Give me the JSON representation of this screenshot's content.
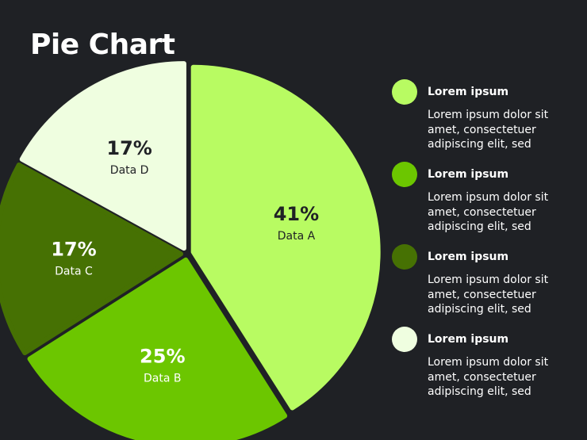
{
  "title": "Pie Chart",
  "chart_data": {
    "type": "pie",
    "title": "Pie Chart",
    "slices": [
      {
        "percent_label": "41%",
        "name": "Data A",
        "value": 41,
        "color": "#b8fb62",
        "text_color": "#1f2125"
      },
      {
        "percent_label": "25%",
        "name": "Data B",
        "value": 25,
        "color": "#6cc600",
        "text_color": "#ffffff"
      },
      {
        "percent_label": "17%",
        "name": "Data C",
        "value": 17,
        "color": "#467103",
        "text_color": "#ffffff"
      },
      {
        "percent_label": "17%",
        "name": "Data D",
        "value": 17,
        "color": "#effee0",
        "text_color": "#1f2125"
      }
    ]
  },
  "legend": [
    {
      "title": "Lorem ipsum",
      "text": "Lorem ipsum dolor sit amet, consectetuer adipiscing elit, sed",
      "color": "#b8fb62"
    },
    {
      "title": "Lorem ipsum",
      "text": "Lorem ipsum dolor sit amet, consectetuer adipiscing elit, sed",
      "color": "#6cc600"
    },
    {
      "title": "Lorem ipsum",
      "text": "Lorem ipsum dolor sit amet, consectetuer adipiscing elit, sed",
      "color": "#467103"
    },
    {
      "title": "Lorem ipsum",
      "text": "Lorem ipsum dolor sit amet, consectetuer adipiscing elit, sed",
      "color": "#effee0"
    }
  ]
}
